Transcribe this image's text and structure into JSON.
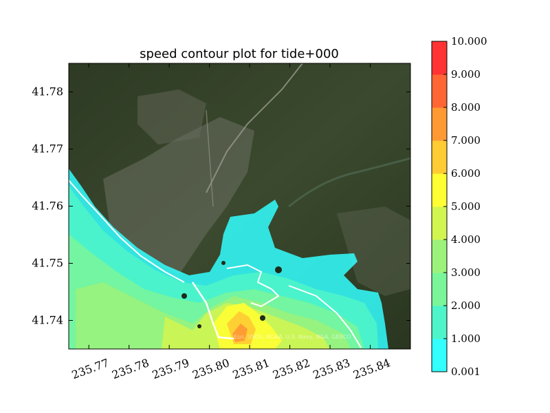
{
  "chart_data": {
    "type": "contour",
    "title": "speed contour plot for tide+000",
    "xlabel": "",
    "ylabel": "",
    "xlim": [
      235.765,
      235.85
    ],
    "ylim": [
      41.735,
      41.785
    ],
    "x_ticks": [
      235.77,
      235.78,
      235.79,
      235.8,
      235.81,
      235.82,
      235.83,
      235.84
    ],
    "x_tick_labels": [
      "235.77",
      "235.78",
      "235.79",
      "235.80",
      "235.81",
      "235.82",
      "235.83",
      "235.84"
    ],
    "y_ticks": [
      41.74,
      41.75,
      41.76,
      41.77,
      41.78
    ],
    "y_tick_labels": [
      "41.74",
      "41.75",
      "41.76",
      "41.77",
      "41.78"
    ],
    "basemap": "satellite imagery",
    "attribution": "Esri, USGS, NOAA, U.S. Navy, NGA, GEBCO",
    "colorbar": {
      "levels": [
        0.001,
        1.0,
        2.0,
        3.0,
        4.0,
        5.0,
        6.0,
        7.0,
        8.0,
        9.0,
        10.0
      ],
      "labels": [
        "0.001",
        "1.000",
        "2.000",
        "3.000",
        "4.000",
        "5.000",
        "6.000",
        "7.000",
        "8.000",
        "9.000",
        "10.000"
      ],
      "colors": [
        "#33ffff",
        "#4df5c8",
        "#7af59a",
        "#9cf27a",
        "#d2f550",
        "#ffff33",
        "#ffcc33",
        "#ff9933",
        "#ff6633",
        "#ff3333"
      ]
    }
  }
}
